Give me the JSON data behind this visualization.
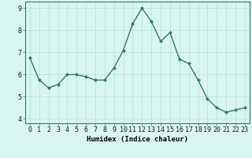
{
  "x": [
    0,
    1,
    2,
    3,
    4,
    5,
    6,
    7,
    8,
    9,
    10,
    11,
    12,
    13,
    14,
    15,
    16,
    17,
    18,
    19,
    20,
    21,
    22,
    23
  ],
  "y": [
    6.75,
    5.75,
    5.4,
    5.55,
    6.0,
    6.0,
    5.9,
    5.75,
    5.75,
    6.3,
    7.1,
    8.3,
    9.0,
    8.4,
    7.5,
    7.9,
    6.7,
    6.5,
    5.75,
    4.9,
    4.5,
    4.3,
    4.4,
    4.5
  ],
  "line_color": "#2e7d6e",
  "marker": "D",
  "marker_size": 2.0,
  "bg_color": "#d8f5f0",
  "grid_color": "#b8ddd8",
  "xlabel": "Humidex (Indice chaleur)",
  "ylim": [
    3.8,
    9.3
  ],
  "xlim": [
    -0.5,
    23.5
  ],
  "yticks": [
    4,
    5,
    6,
    7,
    8,
    9
  ],
  "xticks": [
    0,
    1,
    2,
    3,
    4,
    5,
    6,
    7,
    8,
    9,
    10,
    11,
    12,
    13,
    14,
    15,
    16,
    17,
    18,
    19,
    20,
    21,
    22,
    23
  ],
  "xlabel_fontsize": 6.5,
  "tick_fontsize": 6,
  "linewidth": 1.0
}
